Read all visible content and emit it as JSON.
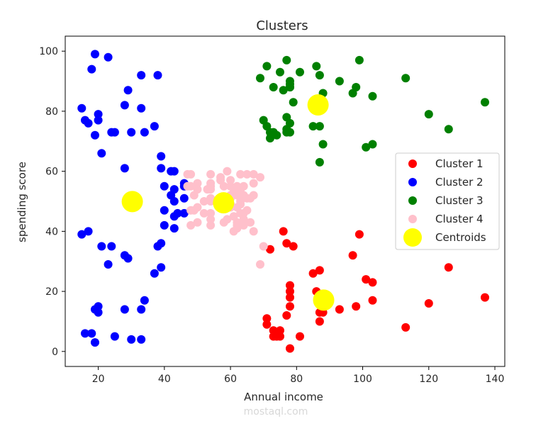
{
  "chart_data": {
    "type": "scatter",
    "title": "Clusters",
    "xlabel": "Annual income",
    "ylabel": "spending score",
    "xlim": [
      10,
      143
    ],
    "ylim": [
      -5,
      105
    ],
    "xticks": [
      20,
      40,
      60,
      80,
      100,
      120,
      140
    ],
    "yticks": [
      0,
      20,
      40,
      60,
      80,
      100
    ],
    "grid": false,
    "legend_position": "center-right",
    "series": [
      {
        "name": "Cluster 1",
        "color": "#ff0000",
        "points": [
          [
            71,
            9
          ],
          [
            71,
            11
          ],
          [
            72,
            34
          ],
          [
            73,
            5
          ],
          [
            73,
            7
          ],
          [
            74,
            5
          ],
          [
            75,
            5
          ],
          [
            75,
            7
          ],
          [
            76,
            40
          ],
          [
            77,
            12
          ],
          [
            77,
            36
          ],
          [
            78,
            1
          ],
          [
            78,
            15
          ],
          [
            78,
            18
          ],
          [
            78,
            20
          ],
          [
            78,
            22
          ],
          [
            79,
            35
          ],
          [
            81,
            5
          ],
          [
            85,
            26
          ],
          [
            86,
            20
          ],
          [
            87,
            10
          ],
          [
            87,
            13
          ],
          [
            87,
            27
          ],
          [
            88,
            13
          ],
          [
            88,
            15
          ],
          [
            93,
            14
          ],
          [
            97,
            32
          ],
          [
            98,
            15
          ],
          [
            99,
            39
          ],
          [
            101,
            24
          ],
          [
            103,
            17
          ],
          [
            103,
            23
          ],
          [
            113,
            8
          ],
          [
            120,
            16
          ],
          [
            126,
            28
          ],
          [
            137,
            18
          ]
        ]
      },
      {
        "name": "Cluster 2",
        "color": "#0000ff",
        "points": [
          [
            15,
            39
          ],
          [
            15,
            81
          ],
          [
            16,
            6
          ],
          [
            16,
            77
          ],
          [
            17,
            40
          ],
          [
            17,
            76
          ],
          [
            18,
            6
          ],
          [
            18,
            94
          ],
          [
            19,
            3
          ],
          [
            19,
            14
          ],
          [
            19,
            72
          ],
          [
            19,
            99
          ],
          [
            20,
            15
          ],
          [
            20,
            77
          ],
          [
            20,
            79
          ],
          [
            20,
            13
          ],
          [
            21,
            35
          ],
          [
            21,
            66
          ],
          [
            23,
            29
          ],
          [
            23,
            98
          ],
          [
            24,
            35
          ],
          [
            24,
            73
          ],
          [
            25,
            5
          ],
          [
            25,
            73
          ],
          [
            28,
            14
          ],
          [
            28,
            32
          ],
          [
            28,
            61
          ],
          [
            28,
            82
          ],
          [
            29,
            31
          ],
          [
            29,
            87
          ],
          [
            30,
            4
          ],
          [
            30,
            73
          ],
          [
            33,
            4
          ],
          [
            33,
            14
          ],
          [
            33,
            81
          ],
          [
            33,
            92
          ],
          [
            34,
            17
          ],
          [
            34,
            73
          ],
          [
            37,
            26
          ],
          [
            37,
            75
          ],
          [
            38,
            35
          ],
          [
            38,
            92
          ],
          [
            39,
            36
          ],
          [
            39,
            28
          ],
          [
            39,
            61
          ],
          [
            39,
            65
          ],
          [
            40,
            42
          ],
          [
            40,
            47
          ],
          [
            40,
            55
          ],
          [
            42,
            52
          ],
          [
            42,
            60
          ],
          [
            43,
            41
          ],
          [
            43,
            45
          ],
          [
            43,
            50
          ],
          [
            43,
            54
          ],
          [
            43,
            60
          ],
          [
            44,
            46
          ],
          [
            46,
            51
          ],
          [
            46,
            46
          ],
          [
            46,
            55
          ],
          [
            46,
            56
          ]
        ]
      },
      {
        "name": "Cluster 3",
        "color": "#008000",
        "points": [
          [
            69,
            91
          ],
          [
            70,
            77
          ],
          [
            71,
            75
          ],
          [
            71,
            95
          ],
          [
            72,
            71
          ],
          [
            72,
            73
          ],
          [
            73,
            73
          ],
          [
            73,
            88
          ],
          [
            74,
            72
          ],
          [
            75,
            93
          ],
          [
            76,
            87
          ],
          [
            77,
            97
          ],
          [
            77,
            73
          ],
          [
            77,
            74
          ],
          [
            77,
            78
          ],
          [
            78,
            88
          ],
          [
            78,
            89
          ],
          [
            78,
            90
          ],
          [
            78,
            76
          ],
          [
            78,
            73
          ],
          [
            78,
            88
          ],
          [
            79,
            83
          ],
          [
            81,
            93
          ],
          [
            85,
            75
          ],
          [
            86,
            95
          ],
          [
            87,
            63
          ],
          [
            87,
            75
          ],
          [
            87,
            92
          ],
          [
            88,
            69
          ],
          [
            88,
            86
          ],
          [
            93,
            90
          ],
          [
            97,
            86
          ],
          [
            98,
            88
          ],
          [
            99,
            97
          ],
          [
            101,
            68
          ],
          [
            103,
            69
          ],
          [
            103,
            85
          ],
          [
            113,
            91
          ],
          [
            120,
            79
          ],
          [
            126,
            74
          ],
          [
            137,
            83
          ]
        ]
      },
      {
        "name": "Cluster 4",
        "color": "#ffc0cb",
        "points": [
          [
            47,
            59
          ],
          [
            47,
            55
          ],
          [
            48,
            47
          ],
          [
            48,
            42
          ],
          [
            48,
            59
          ],
          [
            48,
            55
          ],
          [
            49,
            52
          ],
          [
            49,
            47
          ],
          [
            50,
            56
          ],
          [
            50,
            54
          ],
          [
            50,
            48
          ],
          [
            50,
            43
          ],
          [
            52,
            50
          ],
          [
            52,
            46
          ],
          [
            53,
            54
          ],
          [
            54,
            59
          ],
          [
            54,
            55
          ],
          [
            54,
            54
          ],
          [
            54,
            51
          ],
          [
            54,
            50
          ],
          [
            54,
            46
          ],
          [
            54,
            44
          ],
          [
            54,
            42
          ],
          [
            54,
            56
          ],
          [
            57,
            58
          ],
          [
            57,
            49
          ],
          [
            58,
            43
          ],
          [
            58,
            55
          ],
          [
            59,
            48
          ],
          [
            59,
            60
          ],
          [
            59,
            44
          ],
          [
            60,
            48
          ],
          [
            60,
            49
          ],
          [
            60,
            51
          ],
          [
            60,
            57
          ],
          [
            60,
            52
          ],
          [
            60,
            55
          ],
          [
            61,
            40
          ],
          [
            61,
            45
          ],
          [
            62,
            42
          ],
          [
            62,
            48
          ],
          [
            62,
            43
          ],
          [
            62,
            55
          ],
          [
            62,
            52
          ],
          [
            62,
            41
          ],
          [
            63,
            59
          ],
          [
            63,
            49
          ],
          [
            63,
            46
          ],
          [
            63,
            53
          ],
          [
            63,
            54
          ],
          [
            63,
            50
          ],
          [
            64,
            46
          ],
          [
            64,
            52
          ],
          [
            64,
            44
          ],
          [
            65,
            51
          ],
          [
            65,
            47
          ],
          [
            65,
            59
          ],
          [
            66,
            43
          ],
          [
            66,
            51
          ],
          [
            67,
            52
          ],
          [
            67,
            56
          ],
          [
            67,
            40
          ],
          [
            67,
            59
          ],
          [
            69,
            58
          ],
          [
            69,
            29
          ],
          [
            70,
            35
          ],
          [
            64,
            42
          ],
          [
            64,
            55
          ],
          [
            61,
            53
          ],
          [
            57,
            57
          ]
        ]
      },
      {
        "name": "Centroids",
        "color": "#ffff00",
        "points": [
          [
            30.3,
            49.9
          ],
          [
            57.9,
            49.5
          ],
          [
            86.5,
            82.1
          ],
          [
            88.2,
            17.1
          ]
        ]
      }
    ]
  },
  "watermark": {
    "text": "mostaql.com"
  }
}
